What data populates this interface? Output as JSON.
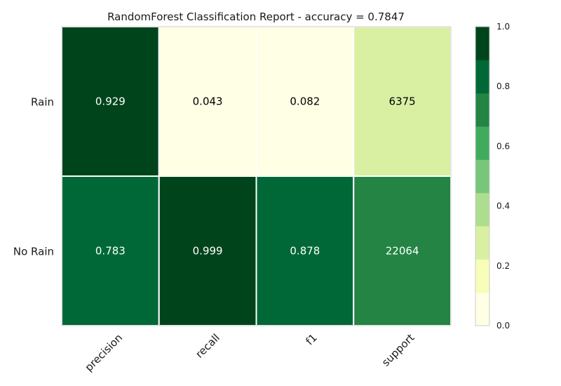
{
  "chart_data": {
    "type": "heatmap",
    "title": "RandomForest Classification Report - accuracy = 0.7847",
    "columns": [
      "precision",
      "recall",
      "f1",
      "support"
    ],
    "rows": [
      "Rain",
      "No Rain"
    ],
    "values": [
      [
        0.929,
        0.043,
        0.082,
        6375
      ],
      [
        0.783,
        0.999,
        0.878,
        22064
      ]
    ],
    "cell_labels": [
      [
        "0.929",
        "0.043",
        "0.082",
        "6375"
      ],
      [
        "0.783",
        "0.999",
        "0.878",
        "22064"
      ]
    ],
    "cell_colors": [
      [
        "#00441b",
        "#ffffe5",
        "#ffffe5",
        "#d9f0a3"
      ],
      [
        "#006837",
        "#00441b",
        "#006837",
        "#238443"
      ]
    ],
    "cell_text_colors": [
      [
        "#ffffff",
        "#000000",
        "#000000",
        "#000000"
      ],
      [
        "#ffffff",
        "#ffffff",
        "#ffffff",
        "#ffffff"
      ]
    ],
    "colorbar": {
      "range": [
        0.0,
        1.0
      ],
      "ticks": [
        "0.0",
        "0.2",
        "0.4",
        "0.6",
        "0.8",
        "1.0"
      ],
      "colors": [
        "#ffffe5",
        "#f7fcb9",
        "#d9f0a3",
        "#addd8e",
        "#78c679",
        "#41ab5d",
        "#238443",
        "#006837",
        "#00441b"
      ]
    },
    "grid": false
  }
}
